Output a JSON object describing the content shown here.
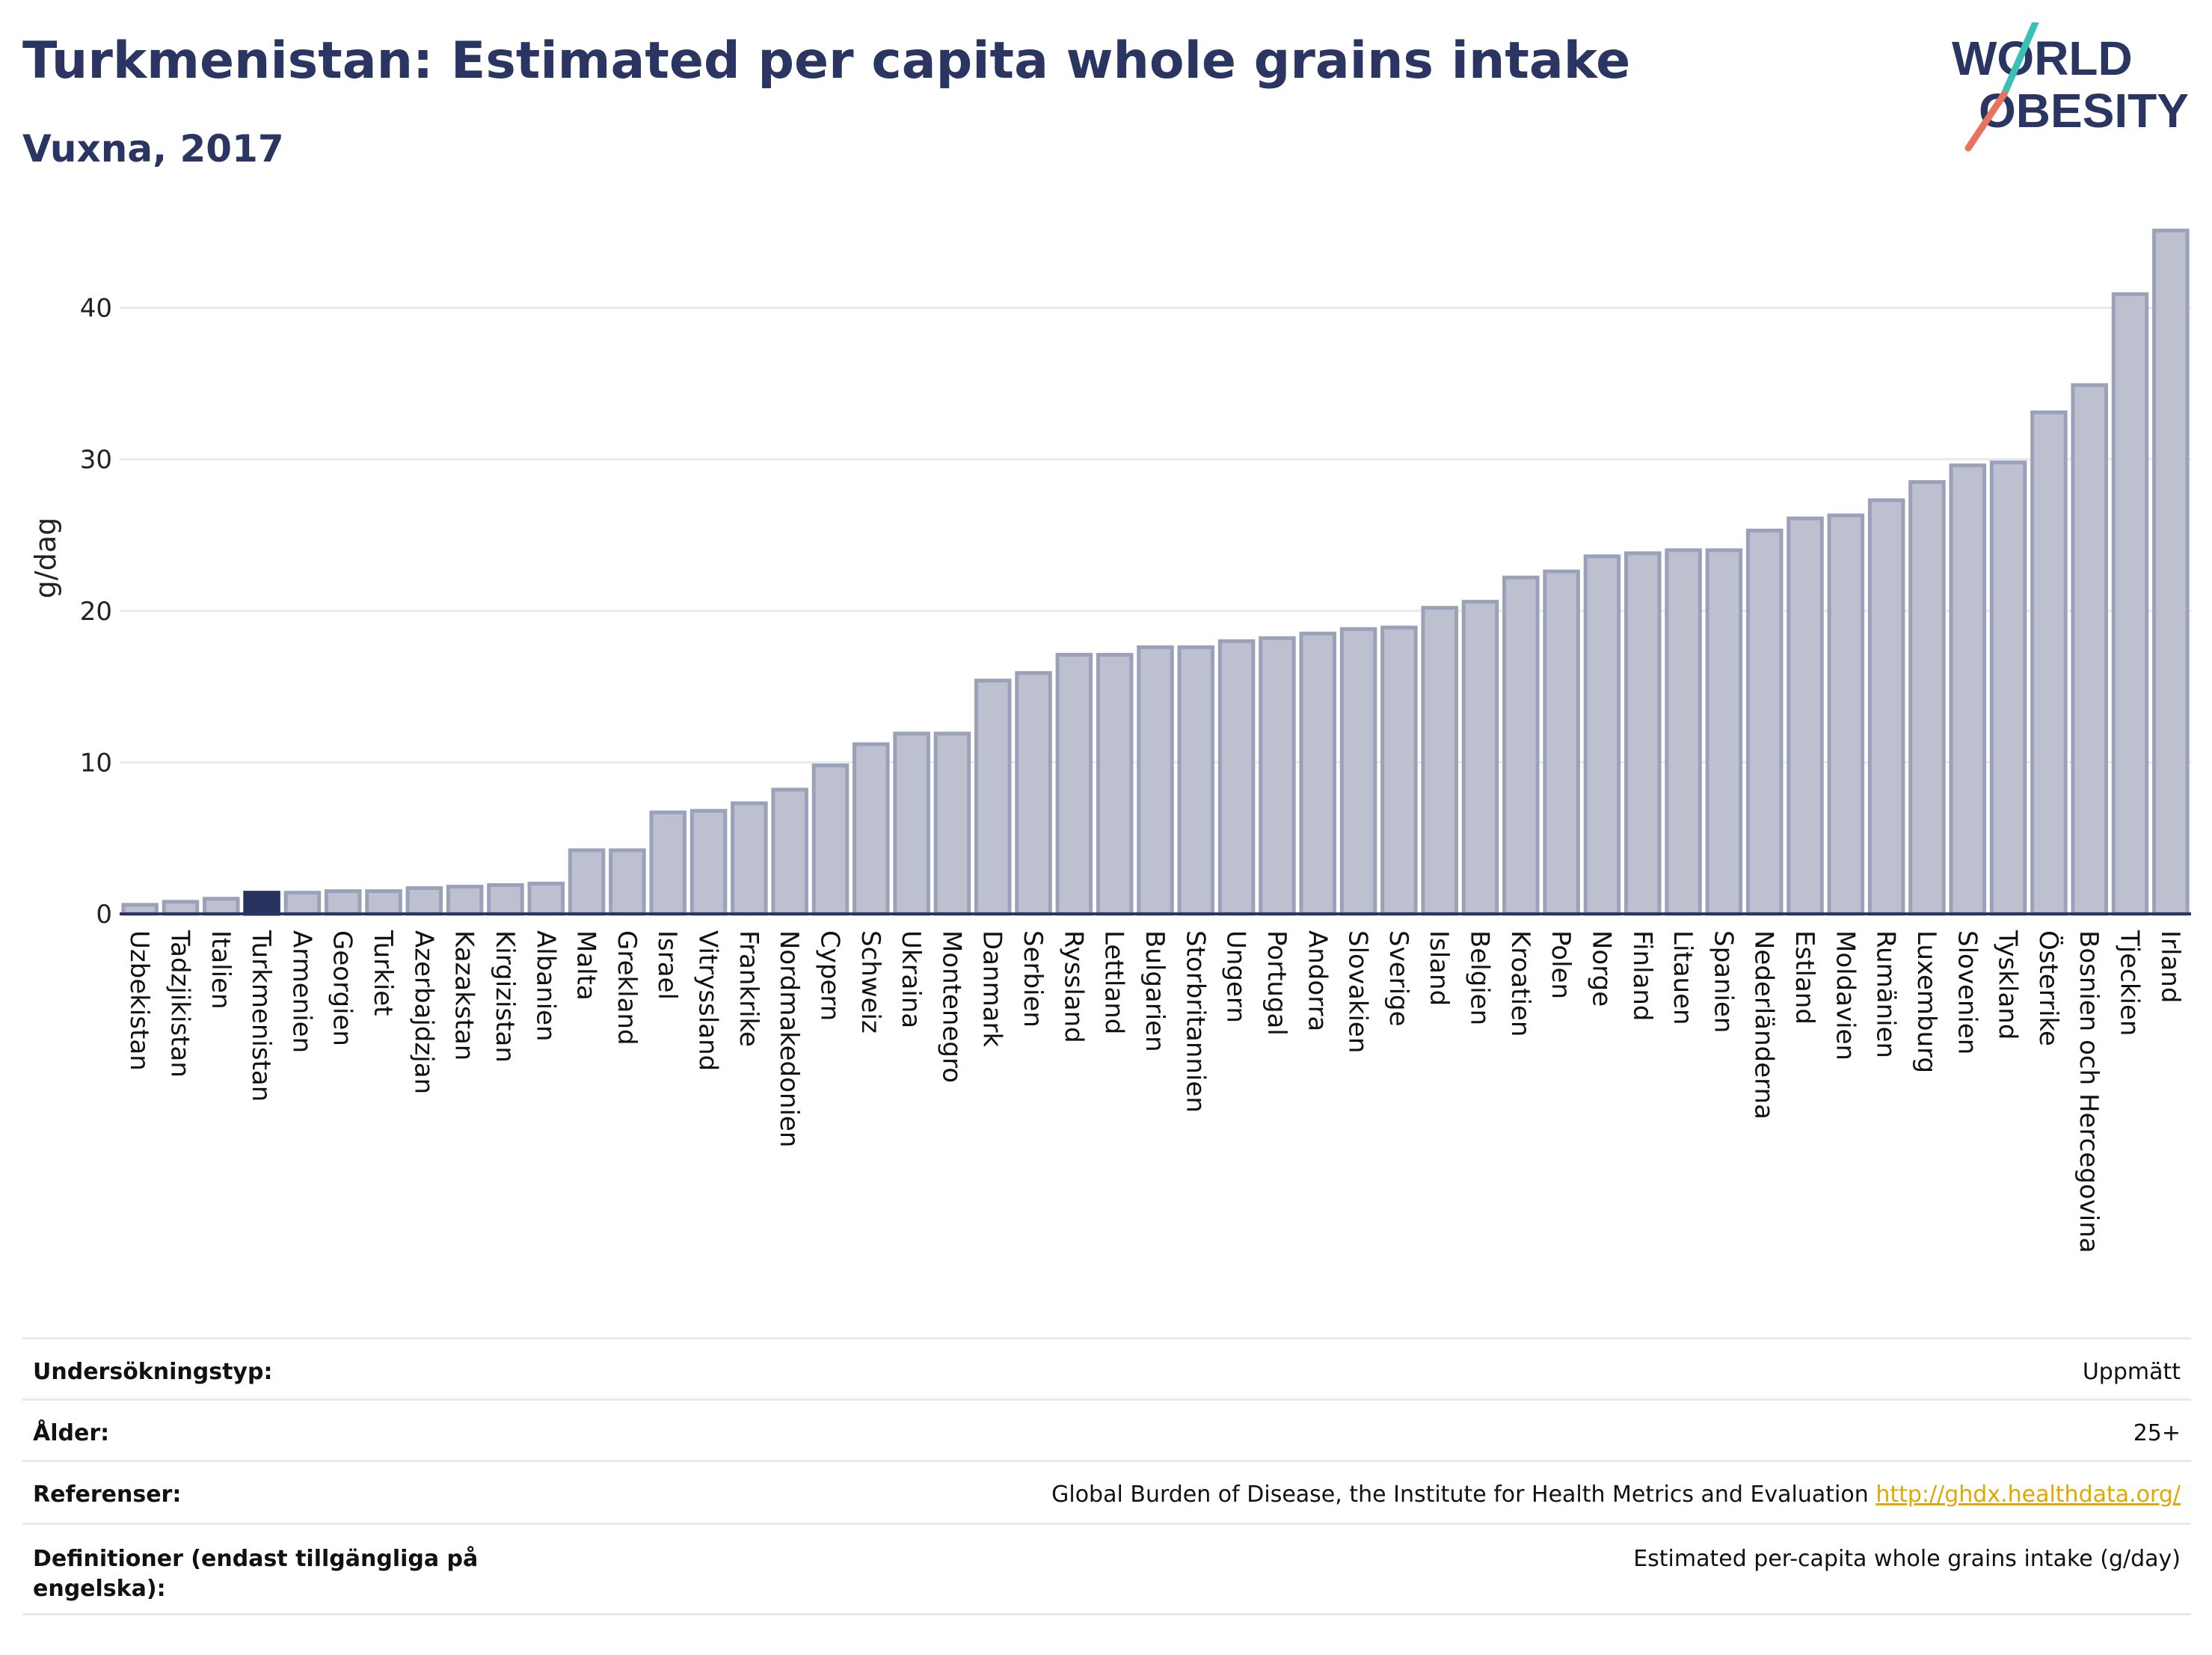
{
  "header": {
    "title": "Turkmenistan: Estimated per capita whole grains intake",
    "subtitle": "Vuxna, 2017"
  },
  "logo": {
    "line1": "WORLD",
    "line2": "OBESITY",
    "icon": "slash-logo-icon",
    "colors": {
      "text": "#2a3562",
      "slash_top": "#3cc0b5",
      "slash_bottom": "#e8735f"
    }
  },
  "colors": {
    "bar": "#bcc0cf",
    "bar_stroke": "#9ba1b8",
    "highlight": "#27325f",
    "grid": "#e8e9ef",
    "axis": "#2a3562"
  },
  "chart_data": {
    "type": "bar",
    "title": "Turkmenistan: Estimated per capita whole grains intake",
    "subtitle": "Vuxna, 2017",
    "xlabel": "",
    "ylabel": "g/dag",
    "ylim": [
      0,
      46
    ],
    "yticks": [
      0,
      10,
      20,
      30,
      40
    ],
    "grid": true,
    "legend": "none",
    "highlight": "Turkmenistan",
    "categories": [
      "Uzbekistan",
      "Tadzjikistan",
      "Italien",
      "Turkmenistan",
      "Armenien",
      "Georgien",
      "Turkiet",
      "Azerbajdzjan",
      "Kazakstan",
      "Kirgizistan",
      "Albanien",
      "Malta",
      "Grekland",
      "Israel",
      "Vitryssland",
      "Frankrike",
      "Nordmakedonien",
      "Cypern",
      "Schweiz",
      "Ukraina",
      "Montenegro",
      "Danmark",
      "Serbien",
      "Ryssland",
      "Lettland",
      "Bulgarien",
      "Storbritannien",
      "Ungern",
      "Portugal",
      "Andorra",
      "Slovakien",
      "Sverige",
      "Island",
      "Belgien",
      "Kroatien",
      "Polen",
      "Norge",
      "Finland",
      "Litauen",
      "Spanien",
      "Nederländerna",
      "Estland",
      "Moldavien",
      "Rumänien",
      "Luxemburg",
      "Slovenien",
      "Tyskland",
      "Österrike",
      "Bosnien och Hercegovina",
      "Tjeckien",
      "Irland"
    ],
    "values": [
      0.6,
      0.8,
      1.0,
      1.4,
      1.4,
      1.5,
      1.5,
      1.7,
      1.8,
      1.9,
      2.0,
      4.2,
      4.2,
      6.7,
      6.8,
      7.3,
      8.2,
      9.8,
      11.2,
      11.9,
      11.9,
      15.4,
      15.9,
      17.1,
      17.1,
      17.6,
      17.6,
      18.0,
      18.2,
      18.5,
      18.8,
      18.9,
      20.2,
      20.6,
      22.2,
      22.6,
      23.6,
      23.8,
      24.0,
      24.0,
      25.3,
      26.1,
      26.3,
      27.3,
      28.5,
      29.6,
      29.8,
      33.1,
      34.9,
      40.9,
      45.1
    ]
  },
  "info": {
    "survey_type_label": "Undersökningstyp:",
    "survey_type_value": "Uppmätt",
    "age_label": "Ålder:",
    "age_value": "25+",
    "references_label": "Referenser:",
    "references_value": "Global Burden of Disease, the Institute for Health Metrics and Evaluation",
    "references_link": "http://ghdx.healthdata.org/",
    "definitions_label": "Definitioner (endast tillgängliga på engelska):",
    "definitions_value": "Estimated per-capita whole grains intake (g/day)"
  }
}
